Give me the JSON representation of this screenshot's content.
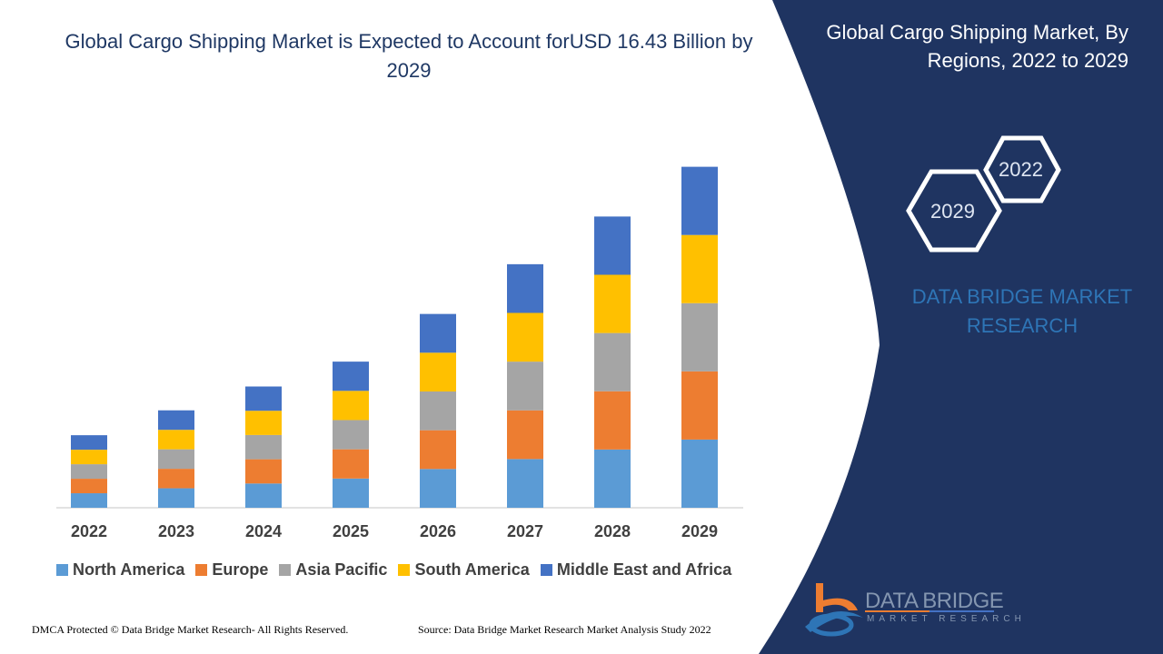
{
  "title": "Global Cargo Shipping Market is Expected to Account forUSD 16.43 Billion by 2029",
  "side_panel": {
    "title": "Global Cargo Shipping Market, By Regions, 2022 to 2029",
    "hex_labels": [
      "2022",
      "2029"
    ],
    "brand": "DATA BRIDGE MARKET RESEARCH",
    "colors": {
      "panel": "#1f3461",
      "brand_text": "#2e75b6"
    }
  },
  "logo": {
    "name": "DATA BRIDGE",
    "sub": "MARKET RESEARCH"
  },
  "footer": {
    "left": "DMCA Protected © Data Bridge Market Research- All Rights Reserved.",
    "right": "Source: Data Bridge Market Research Market Analysis Study 2022"
  },
  "chart_data": {
    "type": "bar",
    "stacked": true,
    "title": "Global Cargo Shipping Market is Expected to Account forUSD 16.43 Billion by 2029",
    "categories": [
      "2022",
      "2023",
      "2024",
      "2025",
      "2026",
      "2027",
      "2028",
      "2029"
    ],
    "series": [
      {
        "name": "North America",
        "color": "#5b9bd5",
        "values": [
          0.7,
          0.94,
          1.17,
          1.41,
          1.87,
          2.35,
          2.81,
          3.29
        ]
      },
      {
        "name": "Europe",
        "color": "#ed7d31",
        "values": [
          0.7,
          0.94,
          1.17,
          1.41,
          1.87,
          2.35,
          2.81,
          3.29
        ]
      },
      {
        "name": "Asia Pacific",
        "color": "#a5a5a5",
        "values": [
          0.7,
          0.94,
          1.17,
          1.41,
          1.87,
          2.35,
          2.81,
          3.29
        ]
      },
      {
        "name": "South America",
        "color": "#ffc000",
        "values": [
          0.7,
          0.94,
          1.17,
          1.41,
          1.87,
          2.35,
          2.81,
          3.29
        ]
      },
      {
        "name": "Middle East and Africa",
        "color": "#4472c4",
        "values": [
          0.7,
          0.94,
          1.17,
          1.41,
          1.87,
          2.35,
          2.81,
          3.29
        ]
      }
    ],
    "xlabel": "",
    "ylabel": "",
    "y_axis_shown": false,
    "grid": false,
    "legend": "bottom"
  }
}
